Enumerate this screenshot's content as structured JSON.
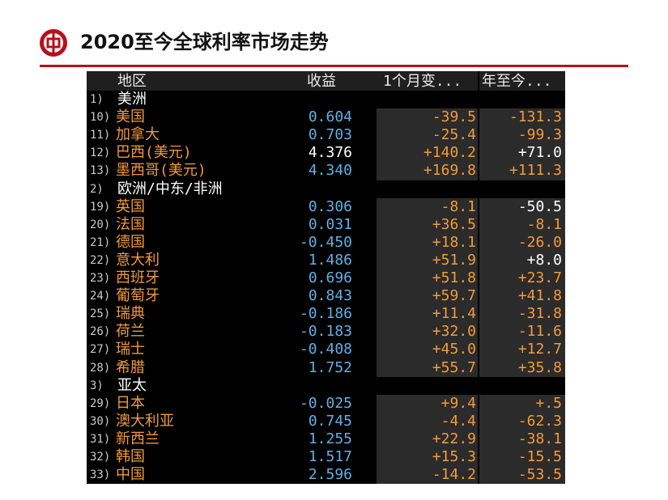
{
  "title": "2020至今全球利率市场走势",
  "table": {
    "headers": {
      "region": "地区",
      "yield": "收益",
      "chg_1m": "1个月变...",
      "ytd": "年至今..."
    },
    "sections": [
      {
        "index": "1)",
        "name": "美洲",
        "rows": [
          {
            "no": "10)",
            "name": "美国",
            "yield": "0.604",
            "chg_1m": "-39.5",
            "ytd": "-131.3"
          },
          {
            "no": "11)",
            "name": "加拿大",
            "yield": "0.703",
            "chg_1m": "-25.4",
            "ytd": "-99.3"
          },
          {
            "no": "12)",
            "name": "巴西(美元)",
            "yield": "4.376",
            "chg_1m": "+140.2",
            "ytd": "+71.0",
            "yield_white": true,
            "ytd_white": true
          },
          {
            "no": "13)",
            "name": "墨西哥(美元)",
            "yield": "4.340",
            "chg_1m": "+169.8",
            "ytd": "+111.3"
          }
        ]
      },
      {
        "index": "2)",
        "name": "欧洲/中东/非洲",
        "rows": [
          {
            "no": "19)",
            "name": "英国",
            "yield": "0.306",
            "chg_1m": "-8.1",
            "ytd": "-50.5",
            "ytd_white": true
          },
          {
            "no": "20)",
            "name": "法国",
            "yield": "0.031",
            "chg_1m": "+36.5",
            "ytd": "-8.1"
          },
          {
            "no": "21)",
            "name": "德国",
            "yield": "-0.450",
            "chg_1m": "+18.1",
            "ytd": "-26.0"
          },
          {
            "no": "22)",
            "name": "意大利",
            "yield": "1.486",
            "chg_1m": "+51.9",
            "ytd": "+8.0",
            "ytd_white": true
          },
          {
            "no": "23)",
            "name": "西班牙",
            "yield": "0.696",
            "chg_1m": "+51.8",
            "ytd": "+23.7"
          },
          {
            "no": "24)",
            "name": "葡萄牙",
            "yield": "0.843",
            "chg_1m": "+59.7",
            "ytd": "+41.8"
          },
          {
            "no": "25)",
            "name": "瑞典",
            "yield": "-0.186",
            "chg_1m": "+11.4",
            "ytd": "-31.8"
          },
          {
            "no": "26)",
            "name": "荷兰",
            "yield": "-0.183",
            "chg_1m": "+32.0",
            "ytd": "-11.6"
          },
          {
            "no": "27)",
            "name": "瑞士",
            "yield": "-0.408",
            "chg_1m": "+45.0",
            "ytd": "+12.7"
          },
          {
            "no": "28)",
            "name": "希腊",
            "yield": "1.752",
            "chg_1m": "+55.7",
            "ytd": "+35.8"
          }
        ]
      },
      {
        "index": "3)",
        "name": "亚太",
        "rows": [
          {
            "no": "29)",
            "name": "日本",
            "yield": "-0.025",
            "chg_1m": "+9.4",
            "ytd": "+.5"
          },
          {
            "no": "30)",
            "name": "澳大利亚",
            "yield": "0.745",
            "chg_1m": "-4.4",
            "ytd": "-62.3"
          },
          {
            "no": "31)",
            "name": "新西兰",
            "yield": "1.255",
            "chg_1m": "+22.9",
            "ytd": "-38.1"
          },
          {
            "no": "32)",
            "name": "韩国",
            "yield": "1.517",
            "chg_1m": "+15.3",
            "ytd": "-15.5"
          },
          {
            "no": "33)",
            "name": "中国",
            "yield": "2.596",
            "chg_1m": "-14.2",
            "ytd": "-53.5"
          }
        ]
      }
    ]
  },
  "colors": {
    "accent": "#b5121b",
    "name": "#f29a3c",
    "yield": "#5fb0e6",
    "background": "#000000"
  },
  "icons": {
    "logo": "bank-of-china-logo-icon"
  }
}
